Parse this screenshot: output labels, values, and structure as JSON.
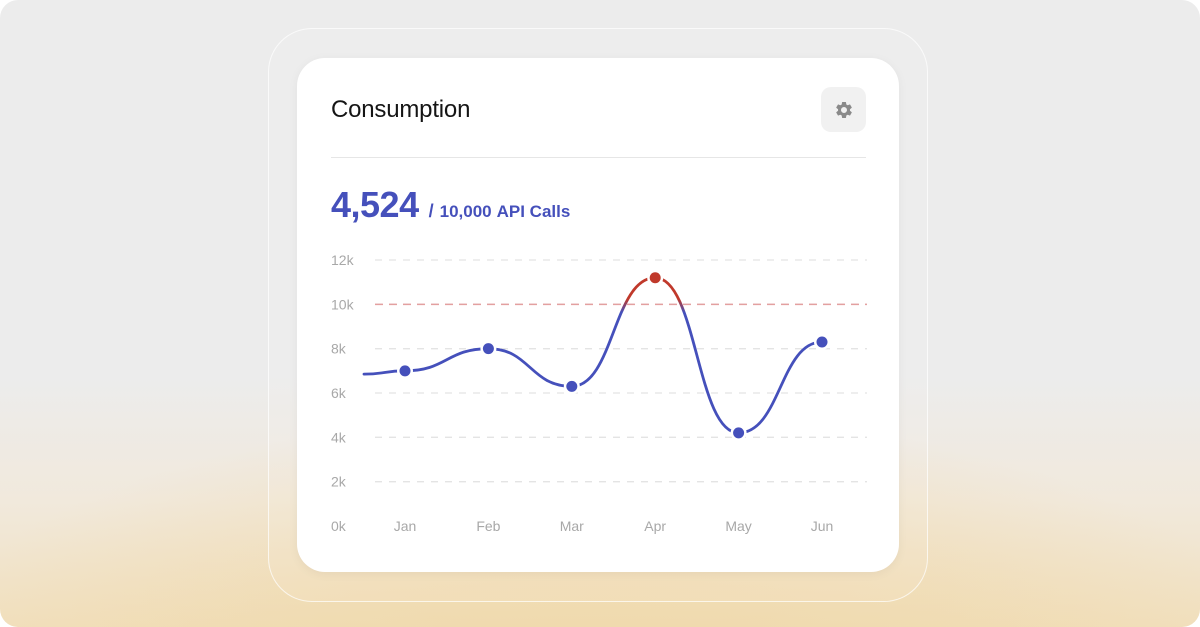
{
  "card": {
    "title": "Consumption",
    "settings_icon": "gear-icon"
  },
  "usage": {
    "value": "4,524",
    "separator": "/",
    "limit": "10,000",
    "unit": "API Calls"
  },
  "colors": {
    "accent": "#4550bb",
    "over_limit": "#c0392b",
    "threshold": "#e3a0a0",
    "grid": "#e4e4e4",
    "tick": "#a8a8a8"
  },
  "chart_data": {
    "type": "line",
    "categories": [
      "Jan",
      "Feb",
      "Mar",
      "Apr",
      "May",
      "Jun"
    ],
    "series": [
      {
        "values": [
          7000,
          8000,
          6300,
          11200,
          4200,
          8300
        ]
      }
    ],
    "start_value": 6850,
    "threshold": 10000,
    "y_ticks": [
      "0k",
      "2k",
      "4k",
      "6k",
      "8k",
      "10k",
      "12k"
    ],
    "ylim": [
      0,
      12000
    ],
    "grid": true,
    "title": "",
    "xlabel": "",
    "ylabel": ""
  }
}
